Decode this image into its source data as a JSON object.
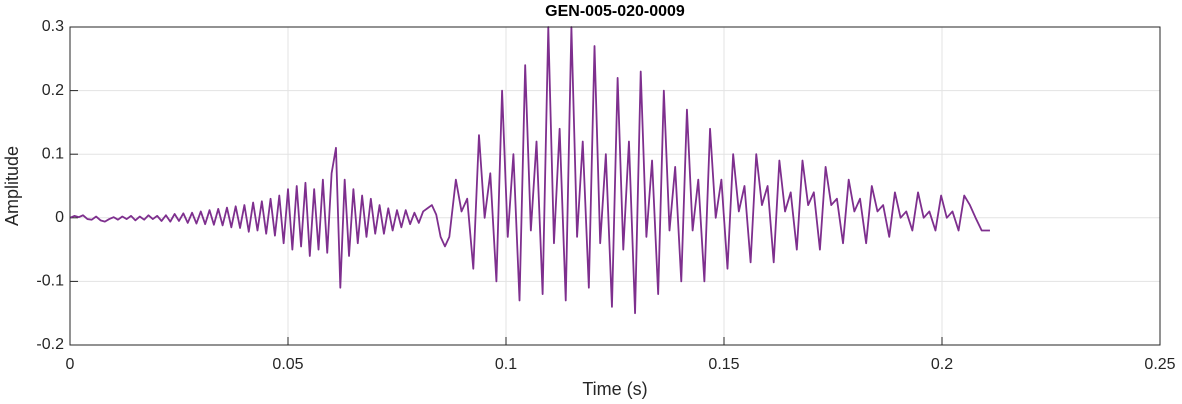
{
  "chart_data": {
    "type": "line",
    "title": "GEN-005-020-0009",
    "xlabel": "Time (s)",
    "ylabel": "Amplitude",
    "xlim": [
      0,
      0.25
    ],
    "xticks": [
      0,
      0.05,
      0.1,
      0.15,
      0.2,
      0.25
    ],
    "ylim": [
      -0.2,
      0.3
    ],
    "yticks": [
      -0.2,
      -0.1,
      0,
      0.1,
      0.2,
      0.3
    ],
    "grid": true,
    "color": "#7e2f8e",
    "x": [
      0,
      0.001,
      0.002,
      0.003,
      0.004,
      0.005,
      0.006,
      0.007,
      0.008,
      0.009,
      0.01,
      0.011,
      0.012,
      0.013,
      0.014,
      0.015,
      0.016,
      0.017,
      0.018,
      0.019,
      0.02,
      0.021,
      0.022,
      0.023,
      0.024,
      0.025,
      0.026,
      0.027,
      0.028,
      0.029,
      0.03,
      0.031,
      0.032,
      0.033,
      0.034,
      0.035,
      0.036,
      0.037,
      0.038,
      0.039,
      0.04,
      0.041,
      0.042,
      0.043,
      0.044,
      0.045,
      0.046,
      0.047,
      0.048,
      0.049,
      0.05,
      0.051,
      0.052,
      0.053,
      0.054,
      0.055,
      0.056,
      0.057,
      0.058,
      0.059,
      0.06,
      0.061,
      0.062,
      0.063,
      0.064,
      0.065,
      0.066,
      0.067,
      0.068,
      0.069,
      0.07,
      0.071,
      0.072,
      0.073,
      0.074,
      0.075,
      0.076,
      0.077,
      0.078,
      0.079,
      0.08,
      0.081,
      0.082,
      0.083,
      0.084,
      0.085,
      0.086,
      0.087,
      0.0885,
      0.0898,
      0.0911,
      0.0925,
      0.0938,
      0.0951,
      0.0964,
      0.0978,
      0.0991,
      0.1004,
      0.1017,
      0.1031,
      0.1044,
      0.1057,
      0.107,
      0.1084,
      0.1097,
      0.111,
      0.1123,
      0.1137,
      0.115,
      0.1163,
      0.1176,
      0.119,
      0.1203,
      0.1216,
      0.1229,
      0.1243,
      0.1256,
      0.1269,
      0.1282,
      0.1296,
      0.1309,
      0.1322,
      0.1335,
      0.1349,
      0.1362,
      0.1375,
      0.1388,
      0.1402,
      0.1415,
      0.1428,
      0.1441,
      0.1455,
      0.1468,
      0.1481,
      0.1494,
      0.1508,
      0.1521,
      0.1534,
      0.1547,
      0.1561,
      0.1574,
      0.1587,
      0.16,
      0.1614,
      0.1627,
      0.164,
      0.1653,
      0.1667,
      0.168,
      0.1693,
      0.1706,
      0.172,
      0.1733,
      0.1746,
      0.1759,
      0.1773,
      0.1786,
      0.1799,
      0.1812,
      0.1826,
      0.1839,
      0.1852,
      0.1865,
      0.1879,
      0.1892,
      0.1905,
      0.1918,
      0.1932,
      0.1945,
      0.1958,
      0.1971,
      0.1985,
      0.1998,
      0.2011,
      0.2024,
      0.2038,
      0.2051,
      0.2064,
      0.2077,
      0.2091,
      0.211
    ],
    "values": [
      0,
      0.003,
      0.001,
      0.004,
      -0.002,
      -0.003,
      0.002,
      -0.004,
      -0.006,
      -0.002,
      0.001,
      -0.003,
      0.002,
      -0.002,
      0.003,
      -0.004,
      0.002,
      -0.003,
      0.004,
      -0.002,
      0.003,
      -0.005,
      0.004,
      -0.006,
      0.006,
      -0.005,
      0.007,
      -0.008,
      0.008,
      -0.009,
      0.01,
      -0.01,
      0.012,
      -0.011,
      0.014,
      -0.012,
      0.016,
      -0.015,
      0.018,
      -0.016,
      0.02,
      -0.022,
      0.024,
      -0.02,
      0.026,
      -0.025,
      0.03,
      -0.028,
      0.035,
      -0.04,
      0.045,
      -0.05,
      0.05,
      -0.045,
      0.055,
      -0.06,
      0.045,
      -0.05,
      0.06,
      -0.055,
      0.07,
      0.11,
      -0.11,
      0.06,
      -0.06,
      0.045,
      -0.04,
      0.035,
      -0.03,
      0.03,
      -0.025,
      0.02,
      -0.025,
      0.015,
      -0.02,
      0.012,
      -0.015,
      0.012,
      -0.01,
      0.008,
      -0.008,
      0.01,
      0.015,
      0.02,
      0.005,
      -0.03,
      -0.045,
      -0.03,
      0.06,
      0.01,
      0.03,
      -0.08,
      0.13,
      0,
      0.07,
      -0.1,
      0.2,
      -0.03,
      0.1,
      -0.13,
      0.24,
      -0.02,
      0.12,
      -0.12,
      0.3,
      -0.04,
      0.14,
      -0.13,
      0.3,
      -0.03,
      0.12,
      -0.11,
      0.27,
      -0.04,
      0.1,
      -0.14,
      0.22,
      -0.05,
      0.12,
      -0.15,
      0.23,
      -0.03,
      0.09,
      -0.12,
      0.2,
      -0.02,
      0.08,
      -0.1,
      0.17,
      -0.02,
      0.06,
      -0.1,
      0.14,
      0,
      0.06,
      -0.08,
      0.1,
      0.01,
      0.05,
      -0.07,
      0.1,
      0.02,
      0.05,
      -0.07,
      0.09,
      0.01,
      0.04,
      -0.05,
      0.09,
      0.02,
      0.04,
      -0.05,
      0.08,
      0.02,
      0.03,
      -0.04,
      0.06,
      0.01,
      0.03,
      -0.04,
      0.05,
      0.01,
      0.02,
      -0.03,
      0.04,
      0,
      0.01,
      -0.02,
      0.04,
      0,
      0.01,
      -0.02,
      0.035,
      0,
      0.01,
      -0.02,
      0.035,
      0.02,
      0,
      -0.02,
      -0.02
    ]
  }
}
